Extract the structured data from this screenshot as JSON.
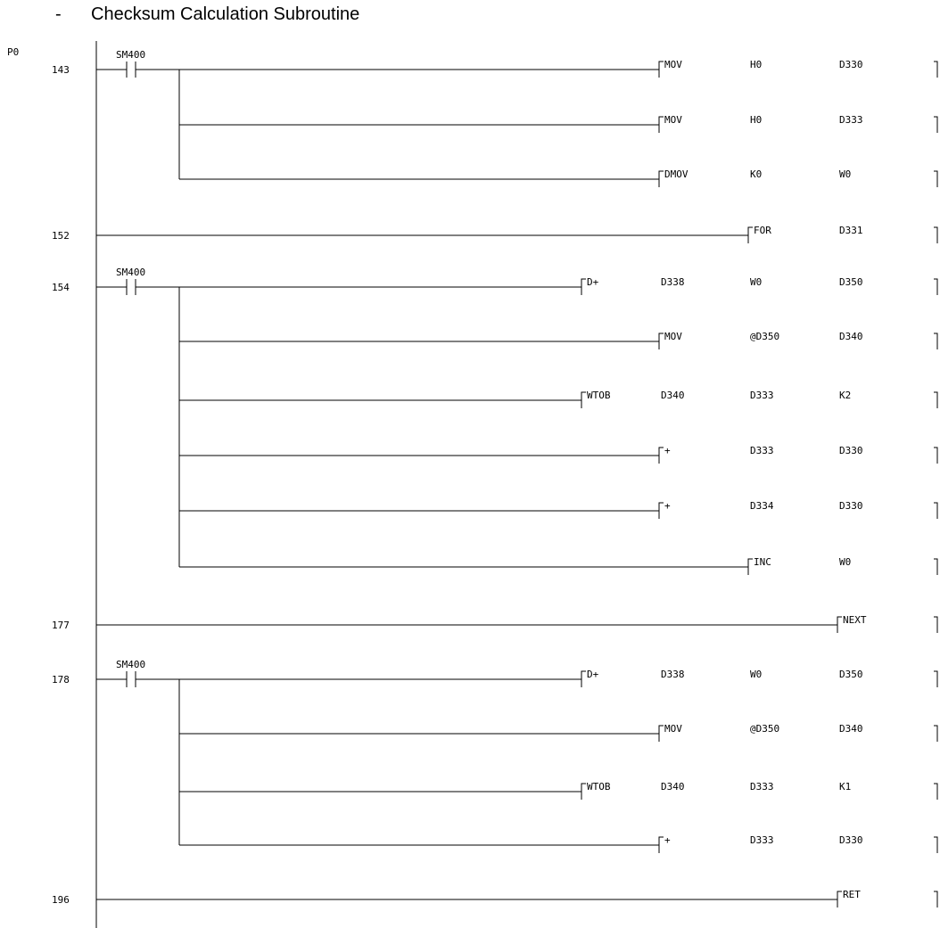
{
  "title": "Checksum Calculation Subroutine",
  "title_prefix": "-",
  "pointer_label": "P0",
  "rungs": [
    {
      "step": "143",
      "contact": "SM400",
      "instructions": [
        {
          "op": "MOV",
          "operands": [
            "H0",
            "D330"
          ]
        },
        {
          "op": "MOV",
          "operands": [
            "H0",
            "D333"
          ]
        },
        {
          "op": "DMOV",
          "operands": [
            "K0",
            "W0"
          ]
        }
      ]
    },
    {
      "step": "152",
      "contact": "",
      "instructions": [
        {
          "op": "FOR",
          "operands": [
            "D331"
          ]
        }
      ]
    },
    {
      "step": "154",
      "contact": "SM400",
      "instructions": [
        {
          "op": "D+",
          "operands": [
            "D338",
            "W0",
            "D350"
          ]
        },
        {
          "op": "MOV",
          "operands": [
            "@D350",
            "D340"
          ]
        },
        {
          "op": "WTOB",
          "operands": [
            "D340",
            "D333",
            "K2"
          ]
        },
        {
          "op": "+",
          "operands": [
            "D333",
            "D330"
          ]
        },
        {
          "op": "+",
          "operands": [
            "D334",
            "D330"
          ]
        },
        {
          "op": "INC",
          "operands": [
            "W0"
          ]
        }
      ]
    },
    {
      "step": "177",
      "contact": "",
      "instructions": [
        {
          "op": "NEXT",
          "operands": []
        }
      ]
    },
    {
      "step": "178",
      "contact": "SM400",
      "instructions": [
        {
          "op": "D+",
          "operands": [
            "D338",
            "W0",
            "D350"
          ]
        },
        {
          "op": "MOV",
          "operands": [
            "@D350",
            "D340"
          ]
        },
        {
          "op": "WTOB",
          "operands": [
            "D340",
            "D333",
            "K1"
          ]
        },
        {
          "op": "+",
          "operands": [
            "D333",
            "D330"
          ]
        }
      ]
    },
    {
      "step": "196",
      "contact": "",
      "instructions": [
        {
          "op": "RET",
          "operands": []
        }
      ]
    }
  ]
}
